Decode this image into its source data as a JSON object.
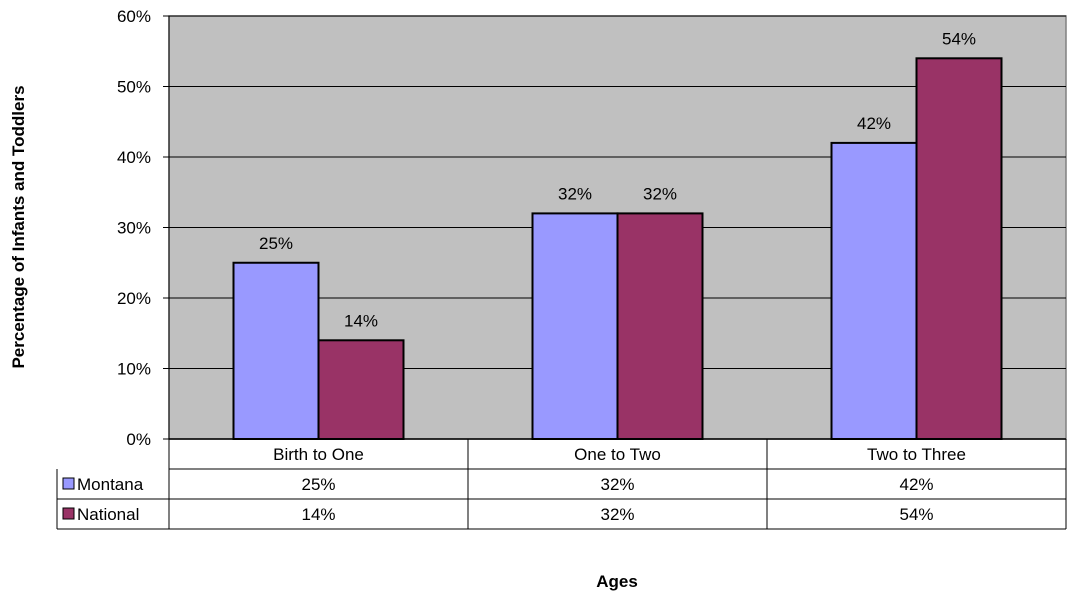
{
  "chart_data": {
    "type": "bar",
    "title": "",
    "xlabel": "Ages",
    "ylabel": "Percentage of Infants and Toddlers",
    "categories": [
      "Birth to One",
      "One to Two",
      "Two to Three"
    ],
    "series": [
      {
        "name": "Montana",
        "values": [
          25,
          32,
          42
        ],
        "color": "#9999ff",
        "labels": [
          "25%",
          "32%",
          "42%"
        ]
      },
      {
        "name": "National",
        "values": [
          14,
          32,
          54
        ],
        "color": "#993366",
        "labels": [
          "14%",
          "32%",
          "54%"
        ]
      }
    ],
    "ylim": [
      0,
      60
    ],
    "yticks": [
      0,
      10,
      20,
      30,
      40,
      50,
      60
    ],
    "ytick_labels": [
      "0%",
      "10%",
      "20%",
      "30%",
      "40%",
      "50%",
      "60%"
    ],
    "plot_background": "#c0c0c0",
    "grid": true,
    "legend": "data-table-left",
    "data_table": true
  }
}
